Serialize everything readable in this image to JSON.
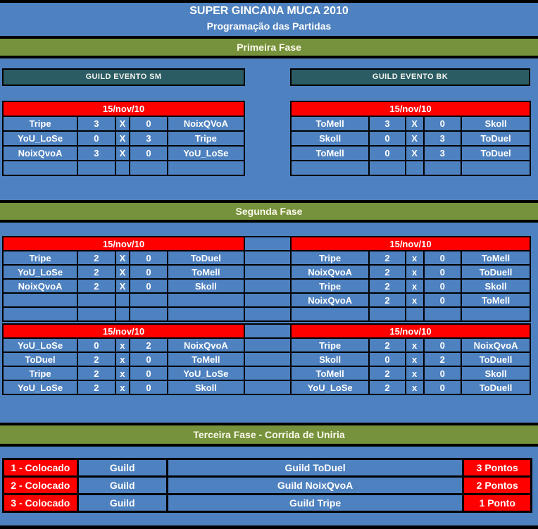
{
  "header": {
    "title": "SUPER GINCANA MUCA 2010",
    "subtitle": "Programação das Partidas"
  },
  "phases": {
    "first": "Primeira Fase",
    "second": "Segunda Fase",
    "third": "Terceira Fase - Corrida de Uniria"
  },
  "guild_headers": {
    "sm": "GUILD EVENTO SM",
    "bk": "GUILD EVENTO BK"
  },
  "colors": {
    "background_blue": "#4e81bf",
    "band_green": "#76923c",
    "header_teal": "#2b5c63",
    "highlight_red": "#ff0000",
    "border_black": "#000000",
    "text_white": "#ffffff"
  },
  "match_tables": {
    "phase1_sm": {
      "date": "15/nov/10",
      "rows": [
        {
          "p1": "Tripe",
          "s1": "3",
          "vs": "X",
          "s2": "0",
          "p2": "NoixQVoA"
        },
        {
          "p1": "YoU_LoSe",
          "s1": "0",
          "vs": "X",
          "s2": "3",
          "p2": "Tripe"
        },
        {
          "p1": "NoixQvoA",
          "s1": "3",
          "vs": "X",
          "s2": "0",
          "p2": "YoU_LoSe"
        },
        {
          "p1": "",
          "s1": "",
          "vs": "",
          "s2": "",
          "p2": ""
        }
      ]
    },
    "phase1_bk": {
      "date": "15/nov/10",
      "rows": [
        {
          "p1": "ToMell",
          "s1": "3",
          "vs": "X",
          "s2": "0",
          "p2": "Skoll"
        },
        {
          "p1": "Skoll",
          "s1": "0",
          "vs": "X",
          "s2": "3",
          "p2": "ToDuel"
        },
        {
          "p1": "ToMell",
          "s1": "0",
          "vs": "X",
          "s2": "3",
          "p2": "ToDuel"
        },
        {
          "p1": "",
          "s1": "",
          "vs": "",
          "s2": "",
          "p2": ""
        }
      ]
    },
    "phase2_block1_sm": {
      "date": "15/nov/10",
      "rows": [
        {
          "p1": "Tripe",
          "s1": "2",
          "vs": "X",
          "s2": "0",
          "p2": "ToDuel"
        },
        {
          "p1": "YoU_LoSe",
          "s1": "2",
          "vs": "X",
          "s2": "0",
          "p2": "ToMell"
        },
        {
          "p1": "NoixQvoA",
          "s1": "2",
          "vs": "X",
          "s2": "0",
          "p2": "Skoll"
        },
        {
          "p1": "",
          "s1": "",
          "vs": "",
          "s2": "",
          "p2": ""
        },
        {
          "p1": "",
          "s1": "",
          "vs": "",
          "s2": "",
          "p2": ""
        }
      ]
    },
    "phase2_block1_bk": {
      "date": "15/nov/10",
      "rows": [
        {
          "p1": "Tripe",
          "s1": "2",
          "vs": "x",
          "s2": "0",
          "p2": "ToMell"
        },
        {
          "p1": "NoixQvoA",
          "s1": "2",
          "vs": "x",
          "s2": "0",
          "p2": "ToDuell"
        },
        {
          "p1": "Tripe",
          "s1": "2",
          "vs": "x",
          "s2": "0",
          "p2": "Skoll"
        },
        {
          "p1": "NoixQvoA",
          "s1": "2",
          "vs": "x",
          "s2": "0",
          "p2": "ToMell"
        },
        {
          "p1": "",
          "s1": "",
          "vs": "",
          "s2": "",
          "p2": ""
        }
      ]
    },
    "phase2_block2_sm": {
      "date": "15/nov/10",
      "rows": [
        {
          "p1": "YoU_LoSe",
          "s1": "0",
          "vs": "x",
          "s2": "2",
          "p2": "NoixQvoA"
        },
        {
          "p1": "ToDuel",
          "s1": "2",
          "vs": "x",
          "s2": "0",
          "p2": "ToMell"
        },
        {
          "p1": "Tripe",
          "s1": "2",
          "vs": "x",
          "s2": "0",
          "p2": "YoU_LoSe"
        },
        {
          "p1": "YoU_LoSe",
          "s1": "2",
          "vs": "x",
          "s2": "0",
          "p2": "Skoll"
        }
      ]
    },
    "phase2_block2_bk": {
      "date": "15/nov/10",
      "rows": [
        {
          "p1": "Tripe",
          "s1": "2",
          "vs": "x",
          "s2": "0",
          "p2": "NoixQvoA"
        },
        {
          "p1": "Skoll",
          "s1": "0",
          "vs": "x",
          "s2": "2",
          "p2": "ToDuell"
        },
        {
          "p1": "ToMell",
          "s1": "2",
          "vs": "x",
          "s2": "0",
          "p2": "Skoll"
        },
        {
          "p1": "YoU_LoSe",
          "s1": "2",
          "vs": "x",
          "s2": "0",
          "p2": "ToDuell"
        }
      ]
    }
  },
  "standings": {
    "rows": [
      {
        "place": "1 - Colocado",
        "type": "Guild",
        "guild": "Guild ToDuel",
        "points": "3 Pontos"
      },
      {
        "place": "2 - Colocado",
        "type": "Guild",
        "guild": "Guild NoixQvoA",
        "points": "2 Pontos"
      },
      {
        "place": "3 - Colocado",
        "type": "Guild",
        "guild": "Guild Tripe",
        "points": "1 Ponto"
      }
    ]
  }
}
